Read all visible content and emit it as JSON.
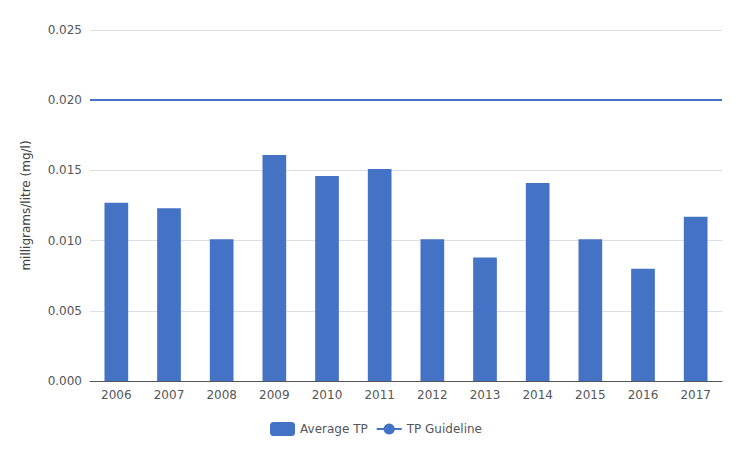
{
  "chart_data": {
    "type": "bar",
    "ylabel": "milligrams/litre (mg/l)",
    "categories": [
      "2006",
      "2007",
      "2008",
      "2009",
      "2010",
      "2011",
      "2012",
      "2013",
      "2014",
      "2015",
      "2016",
      "2017"
    ],
    "series": [
      {
        "name": "Average TP",
        "type": "bar",
        "color": "#4472C4",
        "values": [
          0.0127,
          0.0123,
          0.0101,
          0.0161,
          0.0146,
          0.0151,
          0.0101,
          0.0088,
          0.0141,
          0.0101,
          0.008,
          0.0117
        ]
      }
    ],
    "guideline": {
      "name": "TP Guideline",
      "value": 0.02,
      "color": "#4472C4"
    },
    "ylim": [
      0,
      0.025
    ],
    "yticks": [
      {
        "value": 0.0,
        "label": "0.000"
      },
      {
        "value": 0.005,
        "label": "0.005"
      },
      {
        "value": 0.01,
        "label": "0.010"
      },
      {
        "value": 0.015,
        "label": "0.015"
      },
      {
        "value": 0.02,
        "label": "0.020"
      },
      {
        "value": 0.025,
        "label": "0.025"
      }
    ],
    "grid": true,
    "legend": "bottom"
  }
}
